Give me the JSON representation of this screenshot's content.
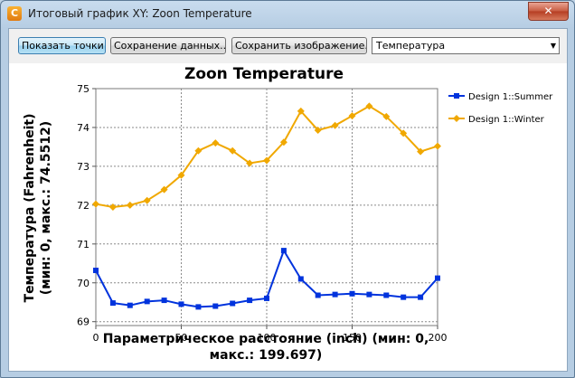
{
  "window": {
    "title": "Итоговый график XY: Zoon Temperature",
    "app_icon_glyph": "C",
    "close_glyph": "✕"
  },
  "toolbar": {
    "show_points_label": "Показать точки",
    "save_data_label": "Сохранение данных...",
    "save_image_label": "Сохранить изображение...",
    "variable_select_value": "Температура"
  },
  "chart_data": {
    "type": "line",
    "title": "Zoon Temperature",
    "xlabel_line1": "Параметрическое расстояние (inch) (мин: 0,",
    "xlabel_line2": "макс.: 199.697)",
    "ylabel_line1": "Температура (Fahrenheit)",
    "ylabel_line2": "(мин: 0, макс.: 74.5512)",
    "xlim": [
      0,
      200
    ],
    "ylim": [
      68.9,
      75
    ],
    "xticks": [
      0,
      50,
      100,
      150,
      200
    ],
    "yticks": [
      69,
      70,
      71,
      72,
      73,
      74,
      75
    ],
    "grid": true,
    "legend_position": "right",
    "series": [
      {
        "name": "Design 1::Summer",
        "color": "#0033dd",
        "marker": "square",
        "x": [
          0,
          10,
          20,
          30,
          40,
          50,
          60,
          70,
          80,
          90,
          100,
          110,
          120,
          130,
          140,
          150,
          160,
          170,
          180,
          190,
          200
        ],
        "values": [
          70.32,
          69.48,
          69.42,
          69.52,
          69.55,
          69.45,
          69.38,
          69.4,
          69.47,
          69.55,
          69.6,
          70.83,
          70.1,
          69.68,
          69.7,
          69.72,
          69.7,
          69.68,
          69.63,
          69.63,
          70.12
        ]
      },
      {
        "name": "Design 1::Winter",
        "color": "#f0a800",
        "marker": "diamond",
        "x": [
          0,
          10,
          20,
          30,
          40,
          50,
          60,
          70,
          80,
          90,
          100,
          110,
          120,
          130,
          140,
          150,
          160,
          170,
          180,
          190,
          200
        ],
        "values": [
          72.03,
          71.95,
          72.0,
          72.12,
          72.4,
          72.77,
          73.4,
          73.6,
          73.4,
          73.08,
          73.15,
          73.62,
          74.42,
          73.93,
          74.05,
          74.3,
          74.55,
          74.28,
          73.85,
          73.38,
          73.52
        ]
      }
    ]
  }
}
